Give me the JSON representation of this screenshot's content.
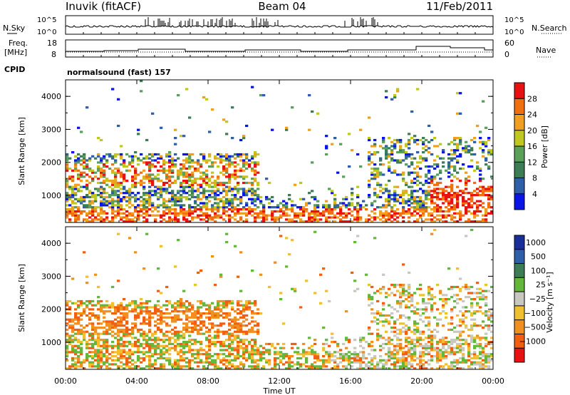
{
  "header": {
    "station": "Inuvik (fitACF)",
    "beam": "Beam 04",
    "date": "11/Feb/2011",
    "cpid_label": "CPID",
    "cpid_value": "normalsound (fast) 157"
  },
  "chart_data": [
    {
      "type": "line",
      "panel": "noise",
      "left_label": "N.Sky",
      "right_label": "N.Search",
      "left_ticks": [
        "10^5",
        "10^0"
      ],
      "right_ticks": [
        "10^5",
        "10^0"
      ],
      "y_scale": "log"
    },
    {
      "type": "line",
      "panel": "frequency",
      "left_label_lines": [
        "Freq.",
        "[MHz]"
      ],
      "right_label": "Nave",
      "left_ticks": [
        "18",
        "8"
      ],
      "right_ticks": [
        "60",
        "0"
      ]
    },
    {
      "type": "heatmap",
      "panel": "power",
      "ylabel": "Slant Range [km]",
      "y_ticks": [
        "1000",
        "2000",
        "3000",
        "4000"
      ],
      "ylim": [
        180,
        4500
      ],
      "colorbar": {
        "label": "Power [dB]",
        "ticks": [
          "4",
          "8",
          "12",
          "16",
          "20",
          "24",
          "28"
        ],
        "colors": [
          "#0a14e6",
          "#2e5fa8",
          "#3d7d55",
          "#5aa05a",
          "#c0c820",
          "#f0a020",
          "#f07010",
          "#e81010"
        ]
      }
    },
    {
      "type": "heatmap",
      "panel": "velocity",
      "ylabel": "Slant Range [km]",
      "y_ticks": [
        "1000",
        "2000",
        "3000",
        "4000"
      ],
      "ylim": [
        180,
        4500
      ],
      "colorbar": {
        "label": "Velocity [m s⁻¹]",
        "ticks": [
          "1000",
          "500",
          "100",
          "25",
          "−25",
          "−100",
          "−500",
          "−1000"
        ],
        "colors": [
          "#1a2e9a",
          "#2e5fa8",
          "#3d7d55",
          "#63b83c",
          "#c8c8c0",
          "#f0c030",
          "#f09020",
          "#f06010",
          "#e81010"
        ]
      }
    }
  ],
  "x_axis": {
    "xlabel": "Time UT",
    "ticks": [
      "00:00",
      "04:00",
      "08:00",
      "12:00",
      "16:00",
      "20:00",
      "00:00"
    ]
  }
}
